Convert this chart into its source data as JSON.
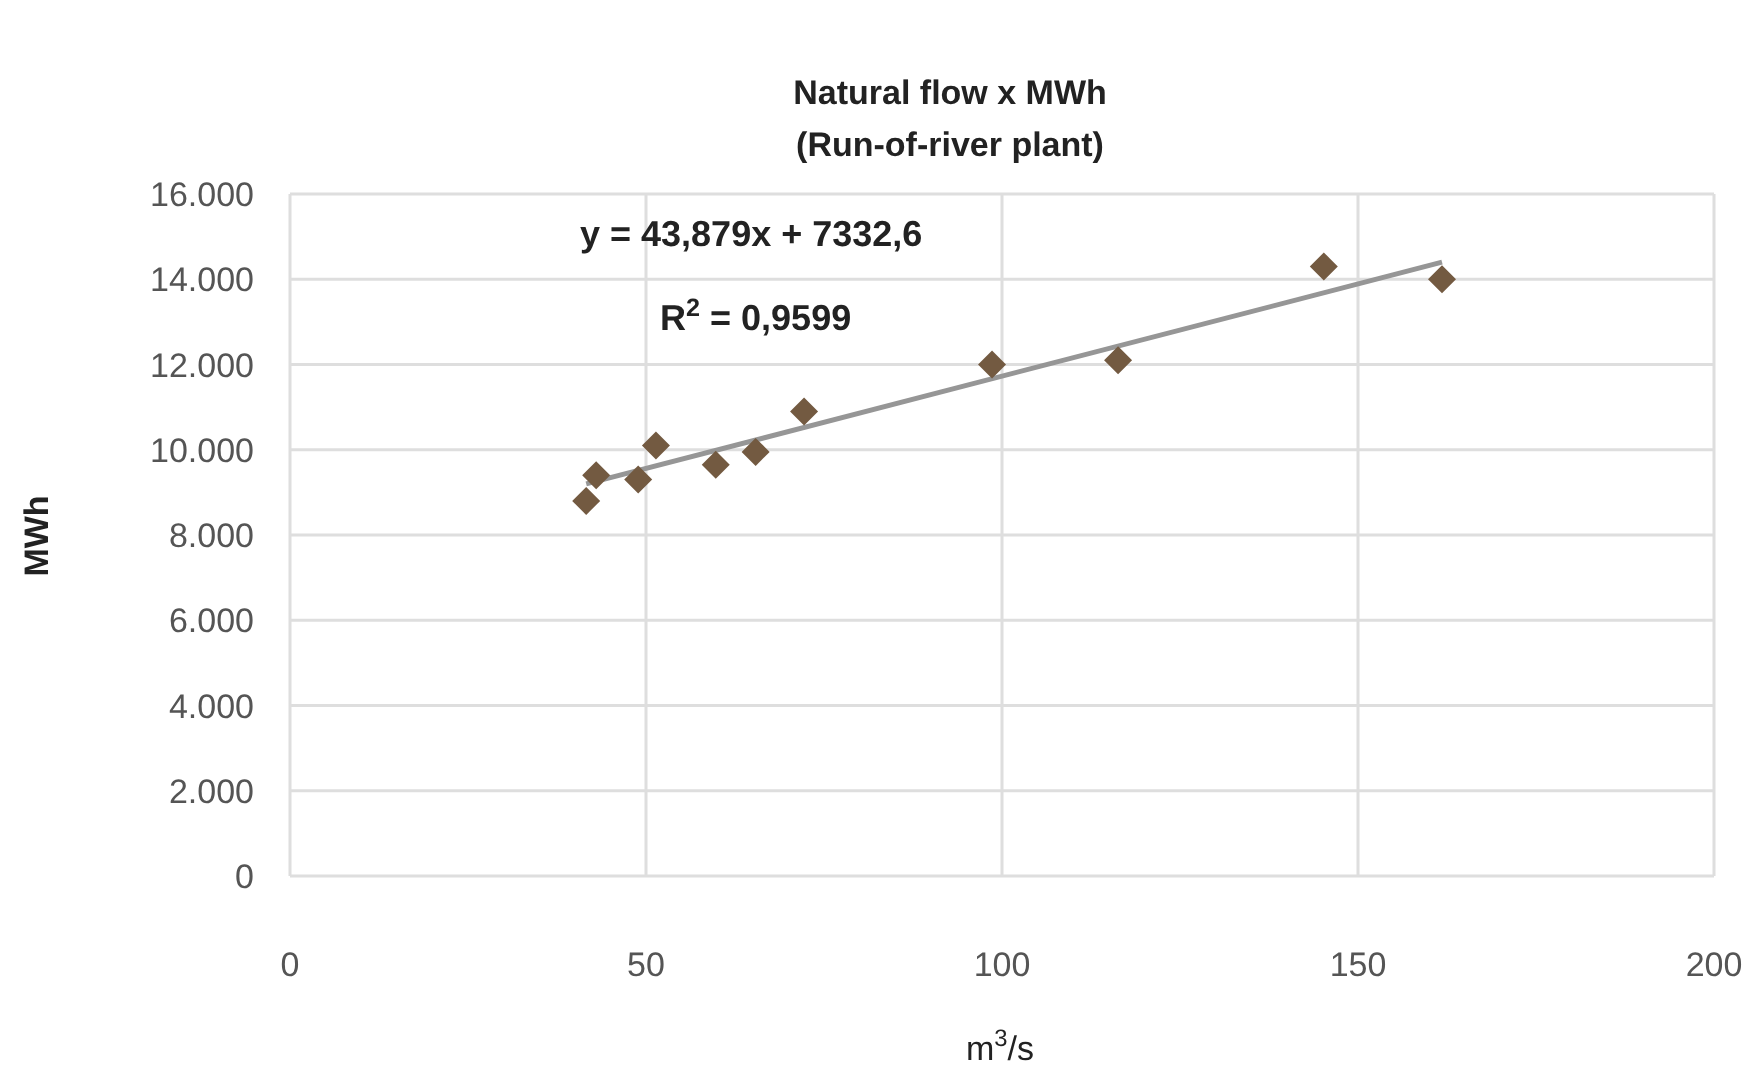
{
  "chart_data": {
    "type": "scatter",
    "title": "Natural flow  x MWh",
    "subtitle": "(Run-of-river plant)",
    "xlabel": "m$^{3}$/s",
    "ylabel": "MWh",
    "annotations": [
      "y = 43,879x + 7332,6",
      "R$^{2}$ = 0,9599"
    ],
    "x": [
      41.6,
      43,
      48.9,
      51.4,
      59.8,
      65.4,
      72.2,
      98.6,
      116.3,
      145.2,
      161.8
    ],
    "series": [
      {
        "color": "#735a41",
        "values": [
          8800,
          9400,
          9300,
          10100,
          9650,
          9950,
          10900,
          12000,
          12100,
          14300,
          14000
        ],
        "marker": "diamond"
      },
      {
        "type": "line",
        "color": "#969696",
        "x": [
          41.6,
          161.8
        ],
        "values": [
          9200,
          14400
        ],
        "marker": "none",
        "line_style": "solid"
      }
    ],
    "xlim": [
      0,
      200
    ],
    "xticks": [
      0,
      50,
      100,
      150,
      200
    ],
    "ylim": [
      0,
      16000
    ],
    "yticks": [
      0,
      {
        "value": 2000,
        "label": "2.000"
      },
      {
        "value": 4000,
        "label": "4.000"
      },
      {
        "value": 6000,
        "label": "6.000"
      },
      {
        "value": 8000,
        "label": "8.000"
      },
      {
        "value": 10000,
        "label": "10.000"
      },
      {
        "value": 12000,
        "label": "12.000"
      },
      {
        "value": 14000,
        "label": "14.000"
      },
      {
        "value": 16000,
        "label": "16.000"
      }
    ],
    "grid": true
  }
}
